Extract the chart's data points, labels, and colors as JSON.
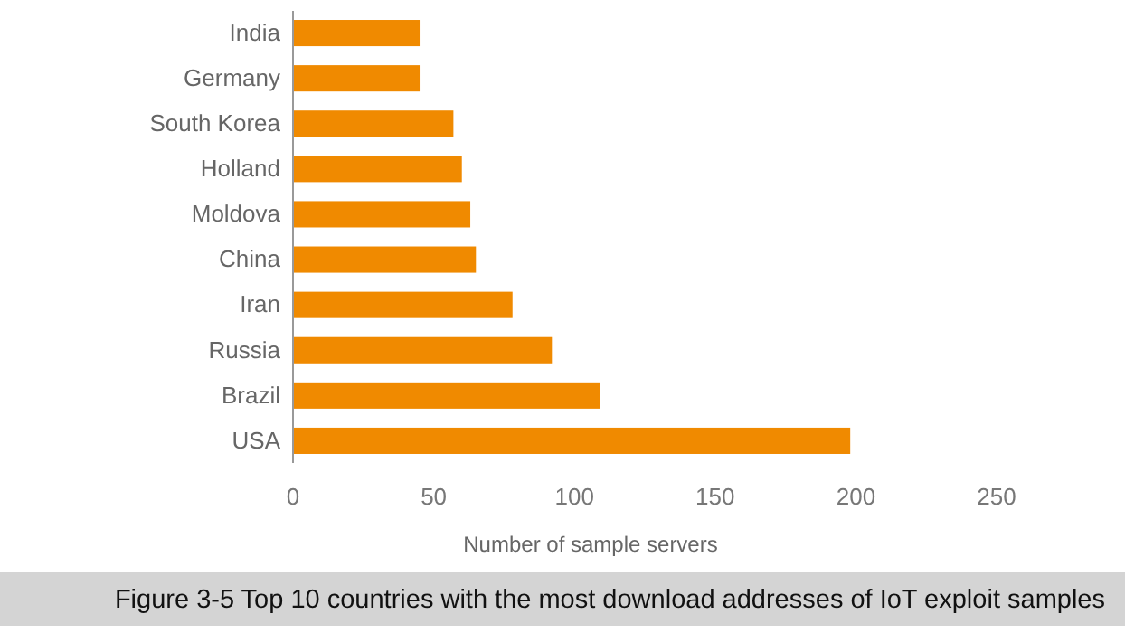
{
  "chart_data": {
    "type": "bar",
    "orientation": "horizontal",
    "categories": [
      "India",
      "Germany",
      "South Korea",
      "Holland",
      "Moldova",
      "China",
      "Iran",
      "Russia",
      "Brazil",
      "USA"
    ],
    "values": [
      45,
      45,
      57,
      60,
      63,
      65,
      78,
      92,
      109,
      198
    ],
    "color": "#f08a00",
    "xlim": [
      0,
      250
    ],
    "xticks": [
      0,
      50,
      100,
      150,
      200,
      250
    ],
    "xlabel": "Number of sample servers",
    "grid": false,
    "annotations": [
      "Figure 3-5 Top 10 countries with the most download addresses of IoT exploit samples"
    ]
  }
}
